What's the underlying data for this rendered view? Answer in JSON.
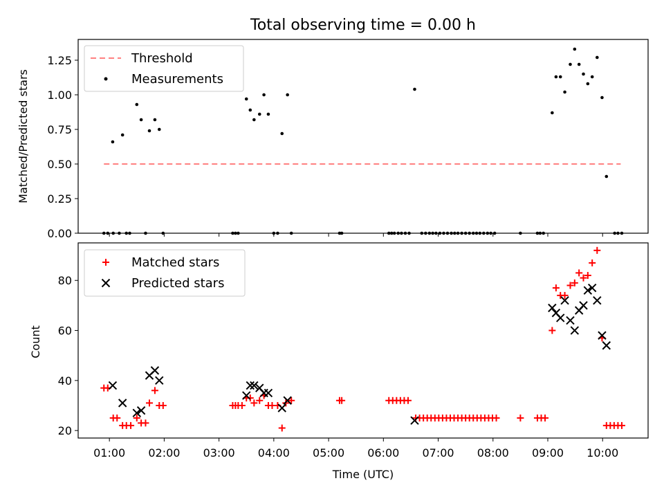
{
  "chart_data": [
    {
      "type": "scatter",
      "title": "Total observing time = 0.00 h",
      "xlabel": "",
      "ylabel": "Matched/Predicted stars",
      "xlim": [
        0.43,
        10.83
      ],
      "ylim": [
        0.0,
        1.4
      ],
      "yticks": [
        0.0,
        0.25,
        0.5,
        0.75,
        1.0,
        1.25
      ],
      "ytick_labels": [
        "0.00",
        "0.25",
        "0.50",
        "0.75",
        "1.00",
        "1.25"
      ],
      "xticks": [
        1,
        2,
        3,
        4,
        5,
        6,
        7,
        8,
        9,
        10
      ],
      "legend_position": "upper-left",
      "threshold": {
        "name": "Threshold",
        "color": "#ff8080",
        "x": [
          0.9,
          10.33
        ],
        "y": [
          0.5,
          0.5
        ]
      },
      "series": [
        {
          "name": "Measurements",
          "marker": "dot",
          "color": "#000000",
          "points": [
            [
              0.9,
              0
            ],
            [
              0.97,
              0
            ],
            [
              1.07,
              0
            ],
            [
              1.18,
              0
            ],
            [
              1.31,
              0
            ],
            [
              1.37,
              0
            ],
            [
              1.66,
              0
            ],
            [
              1.98,
              0
            ],
            [
              3.25,
              0
            ],
            [
              3.3,
              0
            ],
            [
              3.35,
              0
            ],
            [
              4.0,
              0
            ],
            [
              4.07,
              0
            ],
            [
              4.32,
              0
            ],
            [
              5.2,
              0
            ],
            [
              5.24,
              0
            ],
            [
              6.1,
              0
            ],
            [
              6.15,
              0
            ],
            [
              6.2,
              0
            ],
            [
              6.27,
              0
            ],
            [
              6.33,
              0
            ],
            [
              6.4,
              0
            ],
            [
              6.47,
              0
            ],
            [
              6.7,
              0
            ],
            [
              6.77,
              0
            ],
            [
              6.84,
              0
            ],
            [
              6.9,
              0
            ],
            [
              6.96,
              0
            ],
            [
              7.03,
              0
            ],
            [
              7.1,
              0
            ],
            [
              7.17,
              0
            ],
            [
              7.24,
              0
            ],
            [
              7.3,
              0
            ],
            [
              7.36,
              0
            ],
            [
              7.43,
              0
            ],
            [
              7.5,
              0
            ],
            [
              7.57,
              0
            ],
            [
              7.64,
              0
            ],
            [
              7.7,
              0
            ],
            [
              7.76,
              0
            ],
            [
              7.83,
              0
            ],
            [
              7.9,
              0
            ],
            [
              7.96,
              0
            ],
            [
              8.03,
              0
            ],
            [
              8.5,
              0
            ],
            [
              8.81,
              0
            ],
            [
              8.86,
              0
            ],
            [
              8.92,
              0
            ],
            [
              10.22,
              0
            ],
            [
              10.28,
              0
            ],
            [
              10.35,
              0
            ],
            [
              1.06,
              0.66
            ],
            [
              1.24,
              0.71
            ],
            [
              1.5,
              0.93
            ],
            [
              1.58,
              0.82
            ],
            [
              1.73,
              0.74
            ],
            [
              1.83,
              0.82
            ],
            [
              1.91,
              0.75
            ],
            [
              3.5,
              0.97
            ],
            [
              3.57,
              0.89
            ],
            [
              3.64,
              0.82
            ],
            [
              3.74,
              0.86
            ],
            [
              3.82,
              1.0
            ],
            [
              3.9,
              0.86
            ],
            [
              4.15,
              0.72
            ],
            [
              4.25,
              1.0
            ],
            [
              6.57,
              1.04
            ],
            [
              9.08,
              0.87
            ],
            [
              9.15,
              1.13
            ],
            [
              9.23,
              1.13
            ],
            [
              9.31,
              1.02
            ],
            [
              9.41,
              1.22
            ],
            [
              9.49,
              1.33
            ],
            [
              9.57,
              1.22
            ],
            [
              9.65,
              1.15
            ],
            [
              9.73,
              1.08
            ],
            [
              9.81,
              1.13
            ],
            [
              9.9,
              1.27
            ],
            [
              9.99,
              0.98
            ],
            [
              10.07,
              0.41
            ]
          ]
        }
      ]
    },
    {
      "type": "scatter",
      "title": "",
      "xlabel": "Time (UTC)",
      "ylabel": "Count",
      "xlim": [
        0.43,
        10.83
      ],
      "ylim": [
        17,
        95
      ],
      "yticks": [
        20,
        40,
        60,
        80
      ],
      "ytick_labels": [
        "20",
        "40",
        "60",
        "80"
      ],
      "xticks": [
        1,
        2,
        3,
        4,
        5,
        6,
        7,
        8,
        9,
        10
      ],
      "xtick_labels": [
        "01:00",
        "02:00",
        "03:00",
        "04:00",
        "05:00",
        "06:00",
        "07:00",
        "08:00",
        "09:00",
        "10:00"
      ],
      "legend_position": "upper-left",
      "series": [
        {
          "name": "Matched stars",
          "marker": "plus",
          "color": "#ff0000",
          "points": [
            [
              0.9,
              37
            ],
            [
              0.97,
              37
            ],
            [
              1.07,
              25
            ],
            [
              1.14,
              25
            ],
            [
              1.24,
              22
            ],
            [
              1.31,
              22
            ],
            [
              1.39,
              22
            ],
            [
              1.5,
              25
            ],
            [
              1.58,
              23
            ],
            [
              1.66,
              23
            ],
            [
              1.73,
              31
            ],
            [
              1.83,
              36
            ],
            [
              1.91,
              30
            ],
            [
              1.98,
              30
            ],
            [
              3.25,
              30
            ],
            [
              3.3,
              30
            ],
            [
              3.35,
              30
            ],
            [
              3.42,
              30
            ],
            [
              3.5,
              33
            ],
            [
              3.57,
              33
            ],
            [
              3.64,
              31
            ],
            [
              3.74,
              32
            ],
            [
              3.82,
              34
            ],
            [
              3.9,
              30
            ],
            [
              3.97,
              30
            ],
            [
              4.07,
              30
            ],
            [
              4.15,
              21
            ],
            [
              4.22,
              31
            ],
            [
              4.32,
              32
            ],
            [
              5.2,
              32
            ],
            [
              5.24,
              32
            ],
            [
              6.1,
              32
            ],
            [
              6.17,
              32
            ],
            [
              6.24,
              32
            ],
            [
              6.31,
              32
            ],
            [
              6.38,
              32
            ],
            [
              6.45,
              32
            ],
            [
              6.59,
              25
            ],
            [
              6.66,
              25
            ],
            [
              6.73,
              25
            ],
            [
              6.8,
              25
            ],
            [
              6.87,
              25
            ],
            [
              6.94,
              25
            ],
            [
              7.01,
              25
            ],
            [
              7.08,
              25
            ],
            [
              7.15,
              25
            ],
            [
              7.22,
              25
            ],
            [
              7.29,
              25
            ],
            [
              7.36,
              25
            ],
            [
              7.43,
              25
            ],
            [
              7.5,
              25
            ],
            [
              7.57,
              25
            ],
            [
              7.64,
              25
            ],
            [
              7.71,
              25
            ],
            [
              7.78,
              25
            ],
            [
              7.85,
              25
            ],
            [
              7.92,
              25
            ],
            [
              7.99,
              25
            ],
            [
              8.06,
              25
            ],
            [
              8.5,
              25
            ],
            [
              8.81,
              25
            ],
            [
              8.88,
              25
            ],
            [
              8.95,
              25
            ],
            [
              9.08,
              60
            ],
            [
              9.15,
              77
            ],
            [
              9.23,
              74
            ],
            [
              9.31,
              74
            ],
            [
              9.41,
              78
            ],
            [
              9.49,
              79
            ],
            [
              9.57,
              83
            ],
            [
              9.65,
              81
            ],
            [
              9.73,
              82
            ],
            [
              9.81,
              87
            ],
            [
              9.9,
              92
            ],
            [
              9.99,
              57
            ],
            [
              10.07,
              22
            ],
            [
              10.14,
              22
            ],
            [
              10.21,
              22
            ],
            [
              10.28,
              22
            ],
            [
              10.35,
              22
            ]
          ]
        },
        {
          "name": "Predicted stars",
          "marker": "x",
          "color": "#000000",
          "points": [
            [
              1.06,
              38
            ],
            [
              1.24,
              31
            ],
            [
              1.5,
              27
            ],
            [
              1.58,
              28
            ],
            [
              1.73,
              42
            ],
            [
              1.83,
              44
            ],
            [
              1.91,
              40
            ],
            [
              3.5,
              34
            ],
            [
              3.57,
              38
            ],
            [
              3.64,
              38
            ],
            [
              3.74,
              37
            ],
            [
              3.82,
              35
            ],
            [
              3.9,
              35
            ],
            [
              4.15,
              29
            ],
            [
              4.25,
              32
            ],
            [
              6.57,
              24
            ],
            [
              9.08,
              69
            ],
            [
              9.15,
              67
            ],
            [
              9.23,
              65
            ],
            [
              9.31,
              72
            ],
            [
              9.41,
              64
            ],
            [
              9.49,
              60
            ],
            [
              9.57,
              68
            ],
            [
              9.65,
              70
            ],
            [
              9.73,
              76
            ],
            [
              9.81,
              77
            ],
            [
              9.9,
              72
            ],
            [
              9.99,
              58
            ],
            [
              10.07,
              54
            ]
          ]
        }
      ]
    }
  ]
}
